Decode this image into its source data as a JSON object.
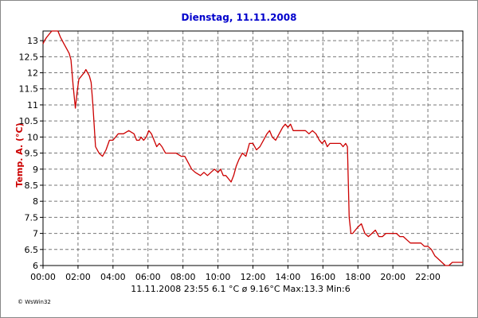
{
  "chart_data": {
    "type": "line",
    "title": "Dienstag, 11.11.2008",
    "ylabel": "Temp. A.  (°C)",
    "xlabel": "",
    "ylim": [
      6,
      13.3
    ],
    "xlim_hours": [
      0,
      24
    ],
    "y_ticks": [
      "6",
      "6.5",
      "7",
      "7.5",
      "8",
      "8.5",
      "9",
      "9.5",
      "10",
      "10.5",
      "11",
      "11.5",
      "12",
      "12.5",
      "13"
    ],
    "x_ticks": [
      "00:00",
      "02:00",
      "04:00",
      "06:00",
      "08:00",
      "10:00",
      "12:00",
      "14:00",
      "16:00",
      "18:00",
      "20:00",
      "22:00"
    ],
    "grid": true,
    "series": [
      {
        "color": "#cc0000",
        "x_hours": [
          0,
          0.08,
          0.2,
          0.35,
          0.5,
          0.6,
          0.75,
          0.85,
          1.0,
          1.2,
          1.4,
          1.5,
          1.6,
          1.72,
          1.85,
          1.95,
          2.05,
          2.2,
          2.35,
          2.45,
          2.55,
          2.65,
          2.75,
          2.85,
          3.0,
          3.2,
          3.4,
          3.6,
          3.8,
          4.0,
          4.3,
          4.6,
          4.9,
          5.2,
          5.35,
          5.5,
          5.6,
          5.75,
          5.9,
          6.05,
          6.2,
          6.35,
          6.5,
          6.65,
          6.8,
          7.0,
          7.3,
          7.6,
          7.9,
          8.1,
          8.3,
          8.5,
          8.7,
          9.0,
          9.2,
          9.4,
          9.6,
          9.8,
          10.0,
          10.15,
          10.3,
          10.45,
          10.6,
          10.75,
          10.9,
          11.05,
          11.2,
          11.4,
          11.6,
          11.8,
          12.0,
          12.2,
          12.4,
          12.6,
          12.8,
          12.95,
          13.1,
          13.3,
          13.5,
          13.7,
          13.85,
          14.0,
          14.15,
          14.3,
          14.45,
          14.6,
          14.8,
          15.0,
          15.2,
          15.4,
          15.6,
          15.8,
          15.95,
          16.1,
          16.25,
          16.4,
          16.6,
          16.8,
          17.0,
          17.15,
          17.3,
          17.4,
          17.5,
          17.6,
          17.7,
          17.85,
          18.0,
          18.2,
          18.4,
          18.6,
          18.8,
          19.0,
          19.2,
          19.4,
          19.6,
          19.8,
          20.0,
          20.2,
          20.4,
          20.6,
          20.8,
          21.0,
          21.2,
          21.4,
          21.6,
          21.8,
          22.0,
          22.2,
          22.4,
          22.6,
          22.8,
          23.0,
          23.2,
          23.4,
          23.6,
          23.8,
          24.0
        ],
        "y": [
          12.9,
          13.0,
          13.1,
          13.2,
          13.3,
          13.3,
          13.3,
          13.3,
          13.1,
          12.9,
          12.7,
          12.6,
          12.4,
          11.6,
          10.9,
          11.4,
          11.8,
          11.9,
          12.0,
          12.1,
          12.0,
          11.9,
          11.7,
          11.0,
          9.7,
          9.5,
          9.4,
          9.6,
          9.9,
          9.9,
          10.1,
          10.1,
          10.2,
          10.1,
          9.9,
          9.9,
          10.0,
          9.9,
          10.0,
          10.2,
          10.1,
          9.9,
          9.7,
          9.8,
          9.7,
          9.5,
          9.5,
          9.5,
          9.4,
          9.4,
          9.2,
          9.0,
          8.9,
          8.8,
          8.9,
          8.8,
          8.9,
          9.0,
          8.9,
          9.0,
          8.8,
          8.8,
          8.7,
          8.6,
          8.8,
          9.1,
          9.3,
          9.5,
          9.4,
          9.8,
          9.8,
          9.6,
          9.7,
          9.9,
          10.1,
          10.2,
          10.0,
          9.9,
          10.1,
          10.3,
          10.4,
          10.3,
          10.4,
          10.2,
          10.2,
          10.2,
          10.2,
          10.2,
          10.1,
          10.2,
          10.1,
          9.9,
          9.8,
          9.9,
          9.7,
          9.8,
          9.8,
          9.8,
          9.8,
          9.7,
          9.8,
          9.7,
          7.5,
          7.0,
          7.0,
          7.1,
          7.2,
          7.3,
          7.0,
          6.9,
          7.0,
          7.1,
          6.9,
          6.9,
          7.0,
          7.0,
          7.0,
          7.0,
          6.9,
          6.9,
          6.8,
          6.7,
          6.7,
          6.7,
          6.7,
          6.6,
          6.6,
          6.5,
          6.3,
          6.2,
          6.1,
          6.0,
          6.0,
          6.1,
          6.1,
          6.1,
          6.1
        ]
      }
    ]
  },
  "footer": {
    "stats": "11.11.2008    23:55    6.1  °C    ø 9.16°C   Max:13.3   Min:6",
    "credit": "© WsWin32"
  }
}
